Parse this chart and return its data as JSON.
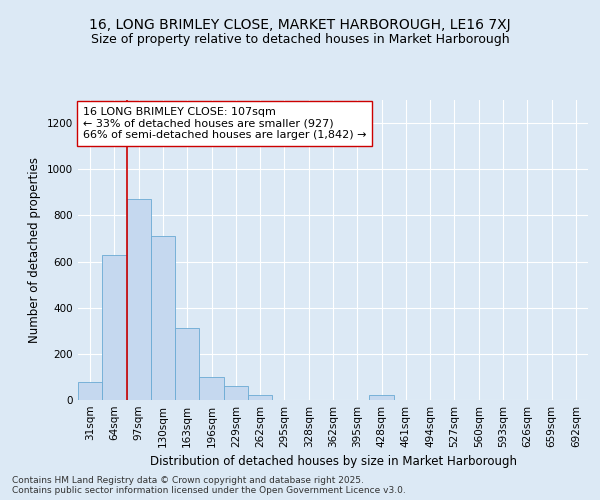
{
  "title_line1": "16, LONG BRIMLEY CLOSE, MARKET HARBOROUGH, LE16 7XJ",
  "title_line2": "Size of property relative to detached houses in Market Harborough",
  "xlabel": "Distribution of detached houses by size in Market Harborough",
  "ylabel": "Number of detached properties",
  "footer_line1": "Contains HM Land Registry data © Crown copyright and database right 2025.",
  "footer_line2": "Contains public sector information licensed under the Open Government Licence v3.0.",
  "bin_labels": [
    "31sqm",
    "64sqm",
    "97sqm",
    "130sqm",
    "163sqm",
    "196sqm",
    "229sqm",
    "262sqm",
    "295sqm",
    "328sqm",
    "362sqm",
    "395sqm",
    "428sqm",
    "461sqm",
    "494sqm",
    "527sqm",
    "560sqm",
    "593sqm",
    "626sqm",
    "659sqm",
    "692sqm"
  ],
  "bar_heights": [
    80,
    630,
    870,
    710,
    310,
    100,
    60,
    20,
    0,
    0,
    0,
    0,
    20,
    0,
    0,
    0,
    0,
    0,
    0,
    0,
    0
  ],
  "bar_color": "#c5d8ef",
  "bar_edge_color": "#6aaad4",
  "background_color": "#dce9f5",
  "grid_color": "#ffffff",
  "red_line_index": 2,
  "red_line_color": "#cc0000",
  "annotation_text": "16 LONG BRIMLEY CLOSE: 107sqm\n← 33% of detached houses are smaller (927)\n66% of semi-detached houses are larger (1,842) →",
  "annotation_box_facecolor": "#ffffff",
  "annotation_box_edgecolor": "#cc0000",
  "ylim": [
    0,
    1300
  ],
  "yticks": [
    0,
    200,
    400,
    600,
    800,
    1000,
    1200
  ],
  "title_fontsize": 10,
  "subtitle_fontsize": 9,
  "axis_label_fontsize": 8.5,
  "tick_fontsize": 7.5,
  "annotation_fontsize": 8,
  "footer_fontsize": 6.5
}
